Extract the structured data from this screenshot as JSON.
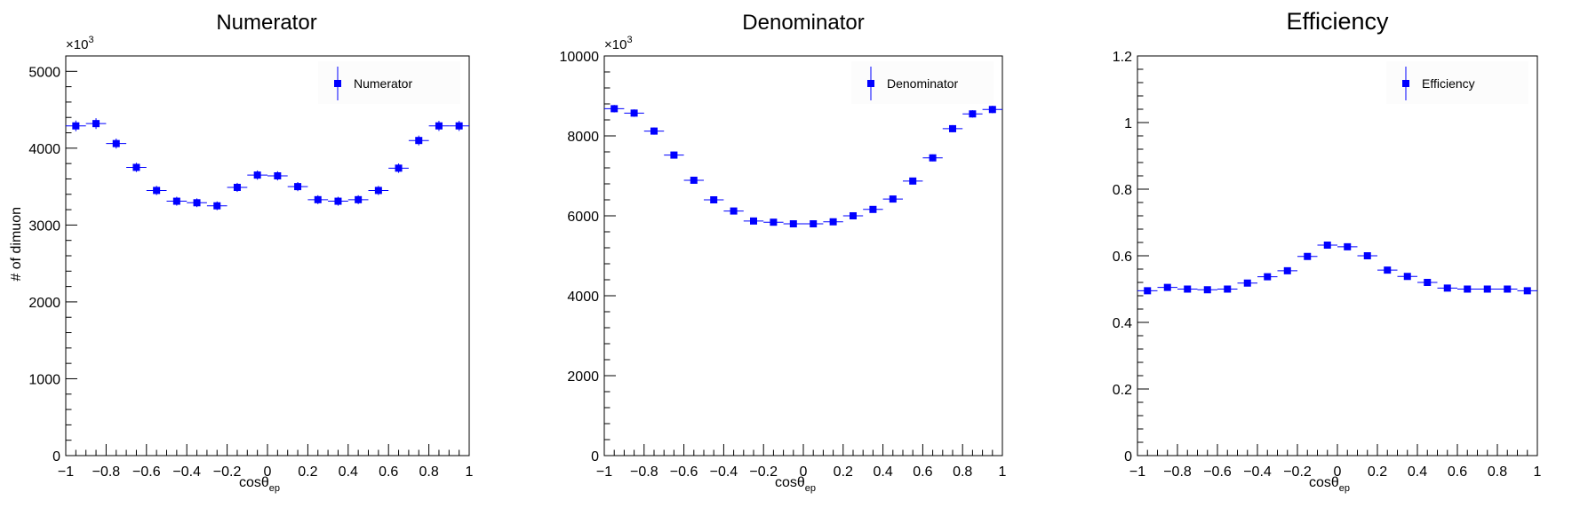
{
  "colors": {
    "marker": "#0000ff",
    "axis": "#000000",
    "legend_bg": "#fcfcfc"
  },
  "chart_data": [
    {
      "type": "scatter",
      "title": "Numerator",
      "xlabel": "cosθ_ep",
      "xlabel_main": "cosθ",
      "xlabel_sub": "ep",
      "ylabel": "# of dimuon",
      "exponent_base": "×10",
      "exponent_power": "3",
      "xlim": [
        -1,
        1
      ],
      "ylim": [
        0,
        5200
      ],
      "xticks": [
        -1,
        -0.8,
        -0.6,
        -0.4,
        -0.2,
        0,
        0.2,
        0.4,
        0.6,
        0.8,
        1
      ],
      "xtick_labels": [
        "−1",
        "−0.8",
        "−0.6",
        "−0.4",
        "−0.2",
        "0",
        "0.2",
        "0.4",
        "0.6",
        "0.8",
        "1"
      ],
      "yticks": [
        0,
        1000,
        2000,
        3000,
        4000,
        5000
      ],
      "ytick_labels": [
        "0",
        "1000",
        "2000",
        "3000",
        "4000",
        "5000"
      ],
      "legend": {
        "label": "Numerator",
        "placement": "top-right"
      },
      "grid": false,
      "series": [
        {
          "name": "Numerator",
          "x": [
            -0.95,
            -0.85,
            -0.75,
            -0.65,
            -0.55,
            -0.45,
            -0.35,
            -0.25,
            -0.15,
            -0.05,
            0.05,
            0.15,
            0.25,
            0.35,
            0.45,
            0.55,
            0.65,
            0.75,
            0.85,
            0.95
          ],
          "y": [
            4290,
            4320,
            4060,
            3750,
            3450,
            3310,
            3290,
            3250,
            3490,
            3650,
            3640,
            3500,
            3330,
            3310,
            3330,
            3450,
            3740,
            4100,
            4290,
            4290
          ],
          "yerr": [
            70,
            70,
            65,
            60,
            60,
            58,
            57,
            57,
            59,
            60,
            60,
            59,
            58,
            58,
            58,
            59,
            61,
            64,
            66,
            66
          ]
        }
      ]
    },
    {
      "type": "scatter",
      "title": "Denominator",
      "xlabel": "cosθ_ep",
      "xlabel_main": "cosθ",
      "xlabel_sub": "ep",
      "ylabel": "",
      "exponent_base": "×10",
      "exponent_power": "3",
      "xlim": [
        -1,
        1
      ],
      "ylim": [
        0,
        10000
      ],
      "xticks": [
        -1,
        -0.8,
        -0.6,
        -0.4,
        -0.2,
        0,
        0.2,
        0.4,
        0.6,
        0.8,
        1
      ],
      "xtick_labels": [
        "−1",
        "−0.8",
        "−0.6",
        "−0.4",
        "−0.2",
        "0",
        "0.2",
        "0.4",
        "0.6",
        "0.8",
        "1"
      ],
      "yticks": [
        0,
        2000,
        4000,
        6000,
        8000,
        10000
      ],
      "ytick_labels": [
        "0",
        "2000",
        "4000",
        "6000",
        "8000",
        "10000"
      ],
      "legend": {
        "label": "Denominator",
        "placement": "top-right"
      },
      "grid": false,
      "series": [
        {
          "name": "Denominator",
          "x": [
            -0.95,
            -0.85,
            -0.75,
            -0.65,
            -0.55,
            -0.45,
            -0.35,
            -0.25,
            -0.15,
            -0.05,
            0.05,
            0.15,
            0.25,
            0.35,
            0.45,
            0.55,
            0.65,
            0.75,
            0.85,
            0.95
          ],
          "y": [
            8680,
            8570,
            8120,
            7520,
            6890,
            6400,
            6120,
            5870,
            5840,
            5800,
            5800,
            5850,
            6000,
            6160,
            6420,
            6870,
            7450,
            8180,
            8550,
            8660
          ],
          "yerr": [
            93,
            93,
            90,
            87,
            83,
            80,
            78,
            77,
            76,
            76,
            76,
            76,
            77,
            78,
            80,
            83,
            86,
            90,
            92,
            93
          ]
        }
      ]
    },
    {
      "type": "scatter",
      "title": "Efficiency",
      "xlabel": "cosθ_ep",
      "xlabel_main": "cosθ",
      "xlabel_sub": "ep",
      "ylabel": "",
      "exponent_base": "",
      "exponent_power": "",
      "xlim": [
        -1,
        1
      ],
      "ylim": [
        0,
        1.2
      ],
      "xticks": [
        -1,
        -0.8,
        -0.6,
        -0.4,
        -0.2,
        0,
        0.2,
        0.4,
        0.6,
        0.8,
        1
      ],
      "xtick_labels": [
        "−1",
        "−0.8",
        "−0.6",
        "−0.4",
        "−0.2",
        "0",
        "0.2",
        "0.4",
        "0.6",
        "0.8",
        "1"
      ],
      "yticks": [
        0,
        0.2,
        0.4,
        0.6,
        0.8,
        1,
        1.2
      ],
      "ytick_labels": [
        "0",
        "0.2",
        "0.4",
        "0.6",
        "0.8",
        "1",
        "1.2"
      ],
      "legend": {
        "label": "Efficiency",
        "placement": "top-right"
      },
      "grid": false,
      "series": [
        {
          "name": "Efficiency",
          "x": [
            -0.95,
            -0.85,
            -0.75,
            -0.65,
            -0.55,
            -0.45,
            -0.35,
            -0.25,
            -0.15,
            -0.05,
            0.05,
            0.15,
            0.25,
            0.35,
            0.45,
            0.55,
            0.65,
            0.75,
            0.85,
            0.95
          ],
          "y": [
            0.495,
            0.505,
            0.5,
            0.498,
            0.5,
            0.518,
            0.537,
            0.555,
            0.598,
            0.632,
            0.627,
            0.6,
            0.557,
            0.538,
            0.52,
            0.503,
            0.5,
            0.5,
            0.5,
            0.495
          ],
          "yerr": [
            0.006,
            0.006,
            0.006,
            0.007,
            0.007,
            0.007,
            0.007,
            0.008,
            0.008,
            0.008,
            0.008,
            0.008,
            0.008,
            0.007,
            0.007,
            0.007,
            0.007,
            0.006,
            0.006,
            0.006
          ]
        }
      ]
    }
  ]
}
